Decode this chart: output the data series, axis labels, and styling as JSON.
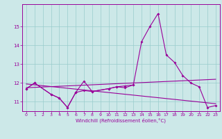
{
  "main_line_x": [
    0,
    1,
    3,
    4,
    5,
    6,
    7,
    8,
    10,
    11,
    12,
    13,
    14,
    15,
    16,
    17,
    18,
    19,
    20,
    21,
    22,
    23
  ],
  "main_line_y": [
    11.7,
    12.0,
    11.4,
    11.2,
    10.7,
    11.5,
    12.1,
    11.55,
    11.7,
    11.8,
    11.75,
    11.9,
    14.2,
    15.0,
    15.7,
    13.5,
    13.1,
    12.4,
    12.0,
    11.8,
    10.7,
    10.8
  ],
  "partial_line_x": [
    0,
    1,
    3,
    4,
    5,
    6,
    7,
    8,
    10,
    11,
    12,
    13
  ],
  "partial_line_y": [
    11.7,
    12.0,
    11.4,
    11.2,
    10.7,
    11.5,
    11.6,
    11.55,
    11.7,
    11.8,
    11.85,
    11.9
  ],
  "trend1_x": [
    0,
    23
  ],
  "trend1_y": [
    11.75,
    12.2
  ],
  "trend2_x": [
    0,
    23
  ],
  "trend2_y": [
    11.95,
    10.9
  ],
  "color": "#990099",
  "bg_color": "#cce8e8",
  "xlabel": "Windchill (Refroidissement éolien,°C)",
  "ylim": [
    10.5,
    16.2
  ],
  "xlim": [
    -0.5,
    23.5
  ],
  "yticks": [
    11,
    12,
    13,
    14,
    15
  ],
  "xticks": [
    0,
    1,
    2,
    3,
    4,
    5,
    6,
    7,
    8,
    9,
    10,
    11,
    12,
    13,
    14,
    15,
    16,
    17,
    18,
    19,
    20,
    21,
    22,
    23
  ],
  "grid_color": "#99cccc"
}
